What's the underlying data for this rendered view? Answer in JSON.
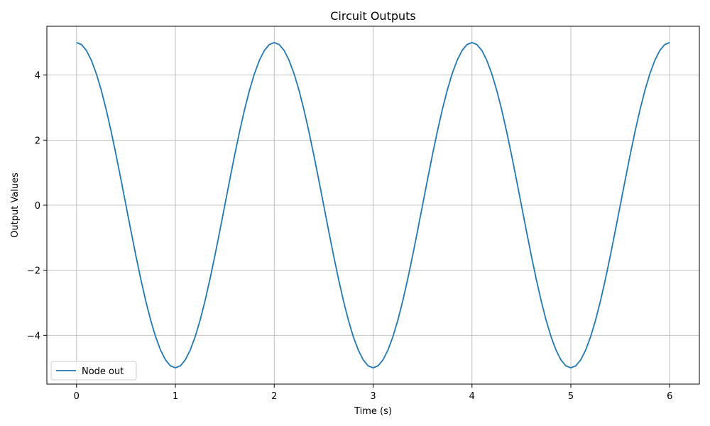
{
  "chart_data": {
    "type": "line",
    "title": "Circuit Outputs",
    "xlabel": "Time (s)",
    "ylabel": "Output Values",
    "xlim": [
      -0.3,
      6.3
    ],
    "ylim": [
      -5.5,
      5.5
    ],
    "xticks": [
      0,
      1,
      2,
      3,
      4,
      5,
      6
    ],
    "yticks": [
      -4,
      -2,
      0,
      2,
      4
    ],
    "grid": true,
    "legend_position": "lower-left",
    "series": [
      {
        "name": "Node out",
        "color": "#1f77b4",
        "amplitude": 5,
        "period": 2,
        "x_start": 0,
        "x_end": 6,
        "samples": 121
      }
    ]
  }
}
